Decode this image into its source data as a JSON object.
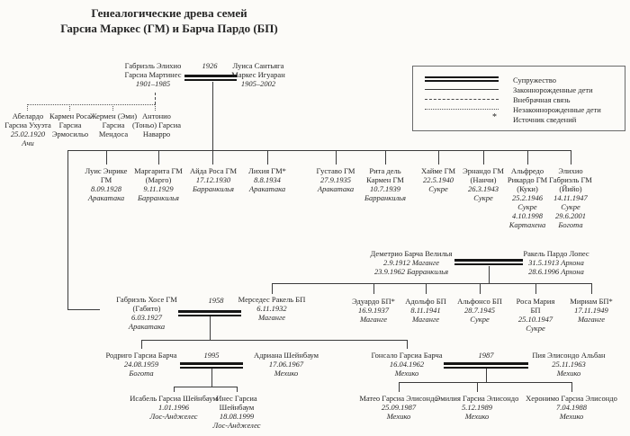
{
  "title": {
    "line1": "Генеалогические древа семей",
    "line2": "Гарсиа Маркес (ГМ) и Барча Пардо (БП)"
  },
  "legend": {
    "marriage": "Супружество",
    "legitimate": "Законнорожденные дети",
    "extramarital": "Внебрачная связь",
    "illegitimate": "Незаконнорожденные дети",
    "source_symbol": "*",
    "source": "Источник сведений"
  },
  "gm_family": {
    "marriage_year": "1926",
    "father": {
      "name": [
        "Габриэль Элихио",
        "Гарсиа Мартинес"
      ],
      "details": [
        "1901–1985"
      ]
    },
    "mother": {
      "name": [
        "Луиса Сантьяга",
        "Маркес Игуаран"
      ],
      "details": [
        "1905–2002"
      ]
    },
    "illegitimate_children": [
      {
        "name": [
          "Абелардо",
          "Гарсиа Ухуэта"
        ],
        "details": [
          "25.02.1920",
          "Ачи"
        ]
      },
      {
        "name": [
          "Кармен Роса",
          "Гарсиа",
          "Эрмосильо"
        ],
        "details": []
      },
      {
        "name": [
          "Жермен (Эми)",
          "Гарсиа",
          "Мендоса"
        ],
        "details": []
      },
      {
        "name": [
          "Антонио",
          "(Тоньо) Гарсиа",
          "Наварро"
        ],
        "details": []
      }
    ],
    "children": [
      {
        "name": [
          "Луис Энрике",
          "ГМ"
        ],
        "details": [
          "8.09.1928",
          "Аракатака"
        ]
      },
      {
        "name": [
          "Маргарита ГМ",
          "(Марго)"
        ],
        "details": [
          "9.11.1929",
          "Барранкилья"
        ]
      },
      {
        "name": [
          "Айда Роса ГМ"
        ],
        "details": [
          "17.12.1930",
          "Барранкилья"
        ]
      },
      {
        "name": [
          "Лихия ГМ*"
        ],
        "details": [
          "8.8.1934",
          "Аракатака"
        ]
      },
      {
        "name": [
          "Густаво ГМ"
        ],
        "details": [
          "27.9.1935",
          "Аракатака"
        ]
      },
      {
        "name": [
          "Рита дель",
          "Кармен ГМ"
        ],
        "details": [
          "10.7.1939",
          "Барранкилья"
        ]
      },
      {
        "name": [
          "Хайме ГМ"
        ],
        "details": [
          "22.5.1940",
          "Сукре"
        ]
      },
      {
        "name": [
          "Эрнандо ГМ",
          "(Нанчи)"
        ],
        "details": [
          "26.3.1943",
          "Сукре"
        ]
      },
      {
        "name": [
          "Альфредо",
          "Рикардо ГМ",
          "(Куки)"
        ],
        "details": [
          "25.2.1946",
          "Сукре",
          "4.10.1998",
          "Картахена"
        ]
      },
      {
        "name": [
          "Элихио",
          "Габриэль ГМ",
          "(Йийо)"
        ],
        "details": [
          "14.11.1947",
          "Сукре",
          "29.6.2001",
          "Богота"
        ]
      }
    ]
  },
  "bp_family": {
    "father": {
      "name": [
        "Деметрио Барча Велилья"
      ],
      "details": [
        "2.9.1912 Маганге",
        "23.9.1962 Барранкилья"
      ]
    },
    "mother": {
      "name": [
        "Ракель Пардо Лопес"
      ],
      "details": [
        "31.5.1913 Архона",
        "28.6.1996 Архона"
      ]
    },
    "children": [
      {
        "name": [
          "Эдуардо БП*"
        ],
        "details": [
          "16.9.1937",
          "Маганге"
        ]
      },
      {
        "name": [
          "Адольфо БП"
        ],
        "details": [
          "8.11.1941",
          "Маганге"
        ]
      },
      {
        "name": [
          "Альфонсо БП"
        ],
        "details": [
          "28.7.1945",
          "Сукре"
        ]
      },
      {
        "name": [
          "Роса Мария",
          "БП"
        ],
        "details": [
          "25.10.1947",
          "Сукре"
        ]
      },
      {
        "name": [
          "Мириам БП*"
        ],
        "details": [
          "17.11.1949",
          "Маганге"
        ]
      }
    ]
  },
  "gabito_family": {
    "marriage_year": "1958",
    "husband": {
      "name": [
        "Габриэль Хосе ГМ",
        "(Габито)"
      ],
      "details": [
        "6.03.1927",
        "Аракатака"
      ]
    },
    "wife": {
      "name": [
        "Мерседес Ракель БП"
      ],
      "details": [
        "6.11.1932",
        "Маганге"
      ]
    },
    "sons": [
      {
        "marriage_year": "1995",
        "person": {
          "name": [
            "Родриго Гарсиа Барча"
          ],
          "details": [
            "24.08.1959",
            "Богота"
          ]
        },
        "wife": {
          "name": [
            "Адриана Шейнбаум"
          ],
          "details": [
            "17.06.1967",
            "Мехико"
          ]
        },
        "children": [
          {
            "name": [
              "Исабель Гарсиа Шейнбаум"
            ],
            "details": [
              "1.01.1996",
              "Лос-Анджелес"
            ]
          },
          {
            "name": [
              "Инес Гарсиа",
              "Шейнбаум"
            ],
            "details": [
              "18.08.1999",
              "Лос-Анджелес"
            ]
          }
        ]
      },
      {
        "marriage_year": "1987",
        "person": {
          "name": [
            "Гонсало Гарсиа Барча"
          ],
          "details": [
            "16.04.1962",
            "Мехико"
          ]
        },
        "wife": {
          "name": [
            "Пия Элисондо Альбан"
          ],
          "details": [
            "25.11.1963",
            "Мехико"
          ]
        },
        "children": [
          {
            "name": [
              "Матео Гарсиа Элисондо"
            ],
            "details": [
              "25.09.1987",
              "Мехико"
            ]
          },
          {
            "name": [
              "Эмилия Гарсиа Элисондо"
            ],
            "details": [
              "5.12.1989",
              "Мехико"
            ]
          },
          {
            "name": [
              "Херонимо Гарсиа Элисондо"
            ],
            "details": [
              "7.04.1988",
              "Мехико"
            ]
          }
        ]
      }
    ]
  }
}
